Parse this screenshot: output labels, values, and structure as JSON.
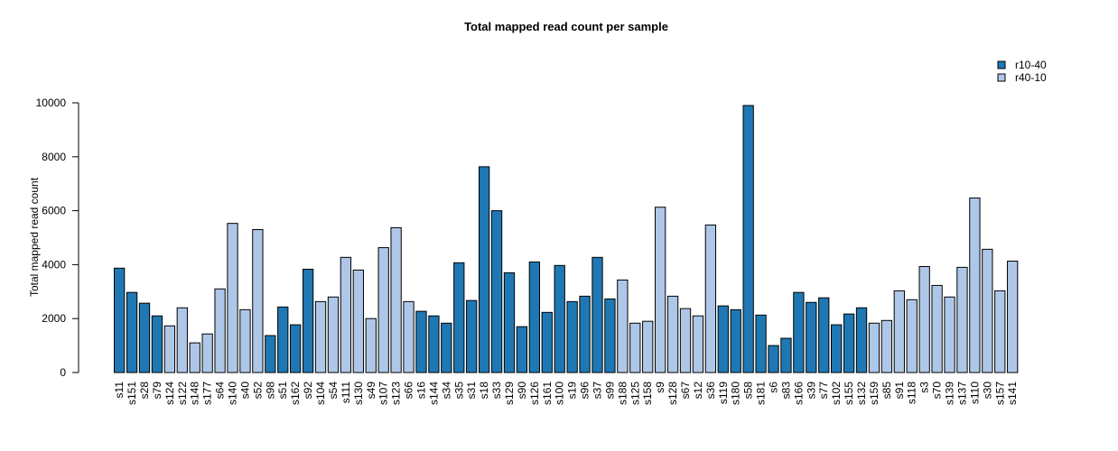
{
  "chart_data": {
    "type": "bar",
    "title": "Total mapped read count per sample",
    "xlabel": "",
    "ylabel": "Total mapped read count",
    "ylim": [
      0,
      10000
    ],
    "yticks": [
      0,
      2000,
      4000,
      6000,
      8000,
      10000
    ],
    "grid": false,
    "legend_placement": "top-right",
    "legend": [
      {
        "name": "r10-40",
        "color": "#1f78b4"
      },
      {
        "name": "r40-10",
        "color": "#aec7e8"
      }
    ],
    "categories": [
      "s11",
      "s151",
      "s28",
      "s79",
      "s124",
      "s122",
      "s148",
      "s177",
      "s64",
      "s140",
      "s40",
      "s52",
      "s98",
      "s51",
      "s162",
      "s92",
      "s104",
      "s54",
      "s111",
      "s130",
      "s49",
      "s107",
      "s123",
      "s66",
      "s16",
      "s144",
      "s34",
      "s35",
      "s31",
      "s18",
      "s33",
      "s129",
      "s90",
      "s126",
      "s161",
      "s100",
      "s19",
      "s96",
      "s37",
      "s99",
      "s188",
      "s125",
      "s158",
      "s9",
      "s128",
      "s67",
      "s12",
      "s36",
      "s119",
      "s180",
      "s58",
      "s181",
      "s6",
      "s83",
      "s166",
      "s39",
      "s77",
      "s102",
      "s155",
      "s132",
      "s159",
      "s85",
      "s91",
      "s118",
      "s3",
      "s70",
      "s139",
      "s137",
      "s110",
      "s30",
      "s157",
      "s141"
    ],
    "values": [
      3870,
      2970,
      2570,
      2100,
      1730,
      2400,
      1100,
      1430,
      3100,
      5530,
      2330,
      5300,
      1370,
      2430,
      1770,
      3830,
      2630,
      2800,
      4270,
      3800,
      2000,
      4630,
      5370,
      2630,
      2270,
      2100,
      1830,
      4070,
      2670,
      7630,
      6000,
      3700,
      1700,
      4100,
      2230,
      3970,
      2630,
      2830,
      4270,
      2730,
      3430,
      1830,
      1900,
      6130,
      2830,
      2370,
      2100,
      5470,
      2470,
      2330,
      9900,
      2130,
      1000,
      1270,
      2970,
      2600,
      2770,
      1770,
      2170,
      2400,
      1830,
      1930,
      3030,
      2700,
      3930,
      3230,
      2800,
      3900,
      6470,
      4570,
      3030,
      4130
    ],
    "groups": [
      "r10-40",
      "r10-40",
      "r10-40",
      "r10-40",
      "r40-10",
      "r40-10",
      "r40-10",
      "r40-10",
      "r40-10",
      "r40-10",
      "r40-10",
      "r40-10",
      "r10-40",
      "r10-40",
      "r10-40",
      "r10-40",
      "r40-10",
      "r40-10",
      "r40-10",
      "r40-10",
      "r40-10",
      "r40-10",
      "r40-10",
      "r40-10",
      "r10-40",
      "r10-40",
      "r10-40",
      "r10-40",
      "r10-40",
      "r10-40",
      "r10-40",
      "r10-40",
      "r10-40",
      "r10-40",
      "r10-40",
      "r10-40",
      "r10-40",
      "r10-40",
      "r10-40",
      "r10-40",
      "r40-10",
      "r40-10",
      "r40-10",
      "r40-10",
      "r40-10",
      "r40-10",
      "r40-10",
      "r40-10",
      "r10-40",
      "r10-40",
      "r10-40",
      "r10-40",
      "r10-40",
      "r10-40",
      "r10-40",
      "r10-40",
      "r10-40",
      "r10-40",
      "r10-40",
      "r10-40",
      "r40-10",
      "r40-10",
      "r40-10",
      "r40-10",
      "r40-10",
      "r40-10",
      "r40-10",
      "r40-10",
      "r40-10",
      "r40-10",
      "r40-10",
      "r40-10"
    ]
  }
}
